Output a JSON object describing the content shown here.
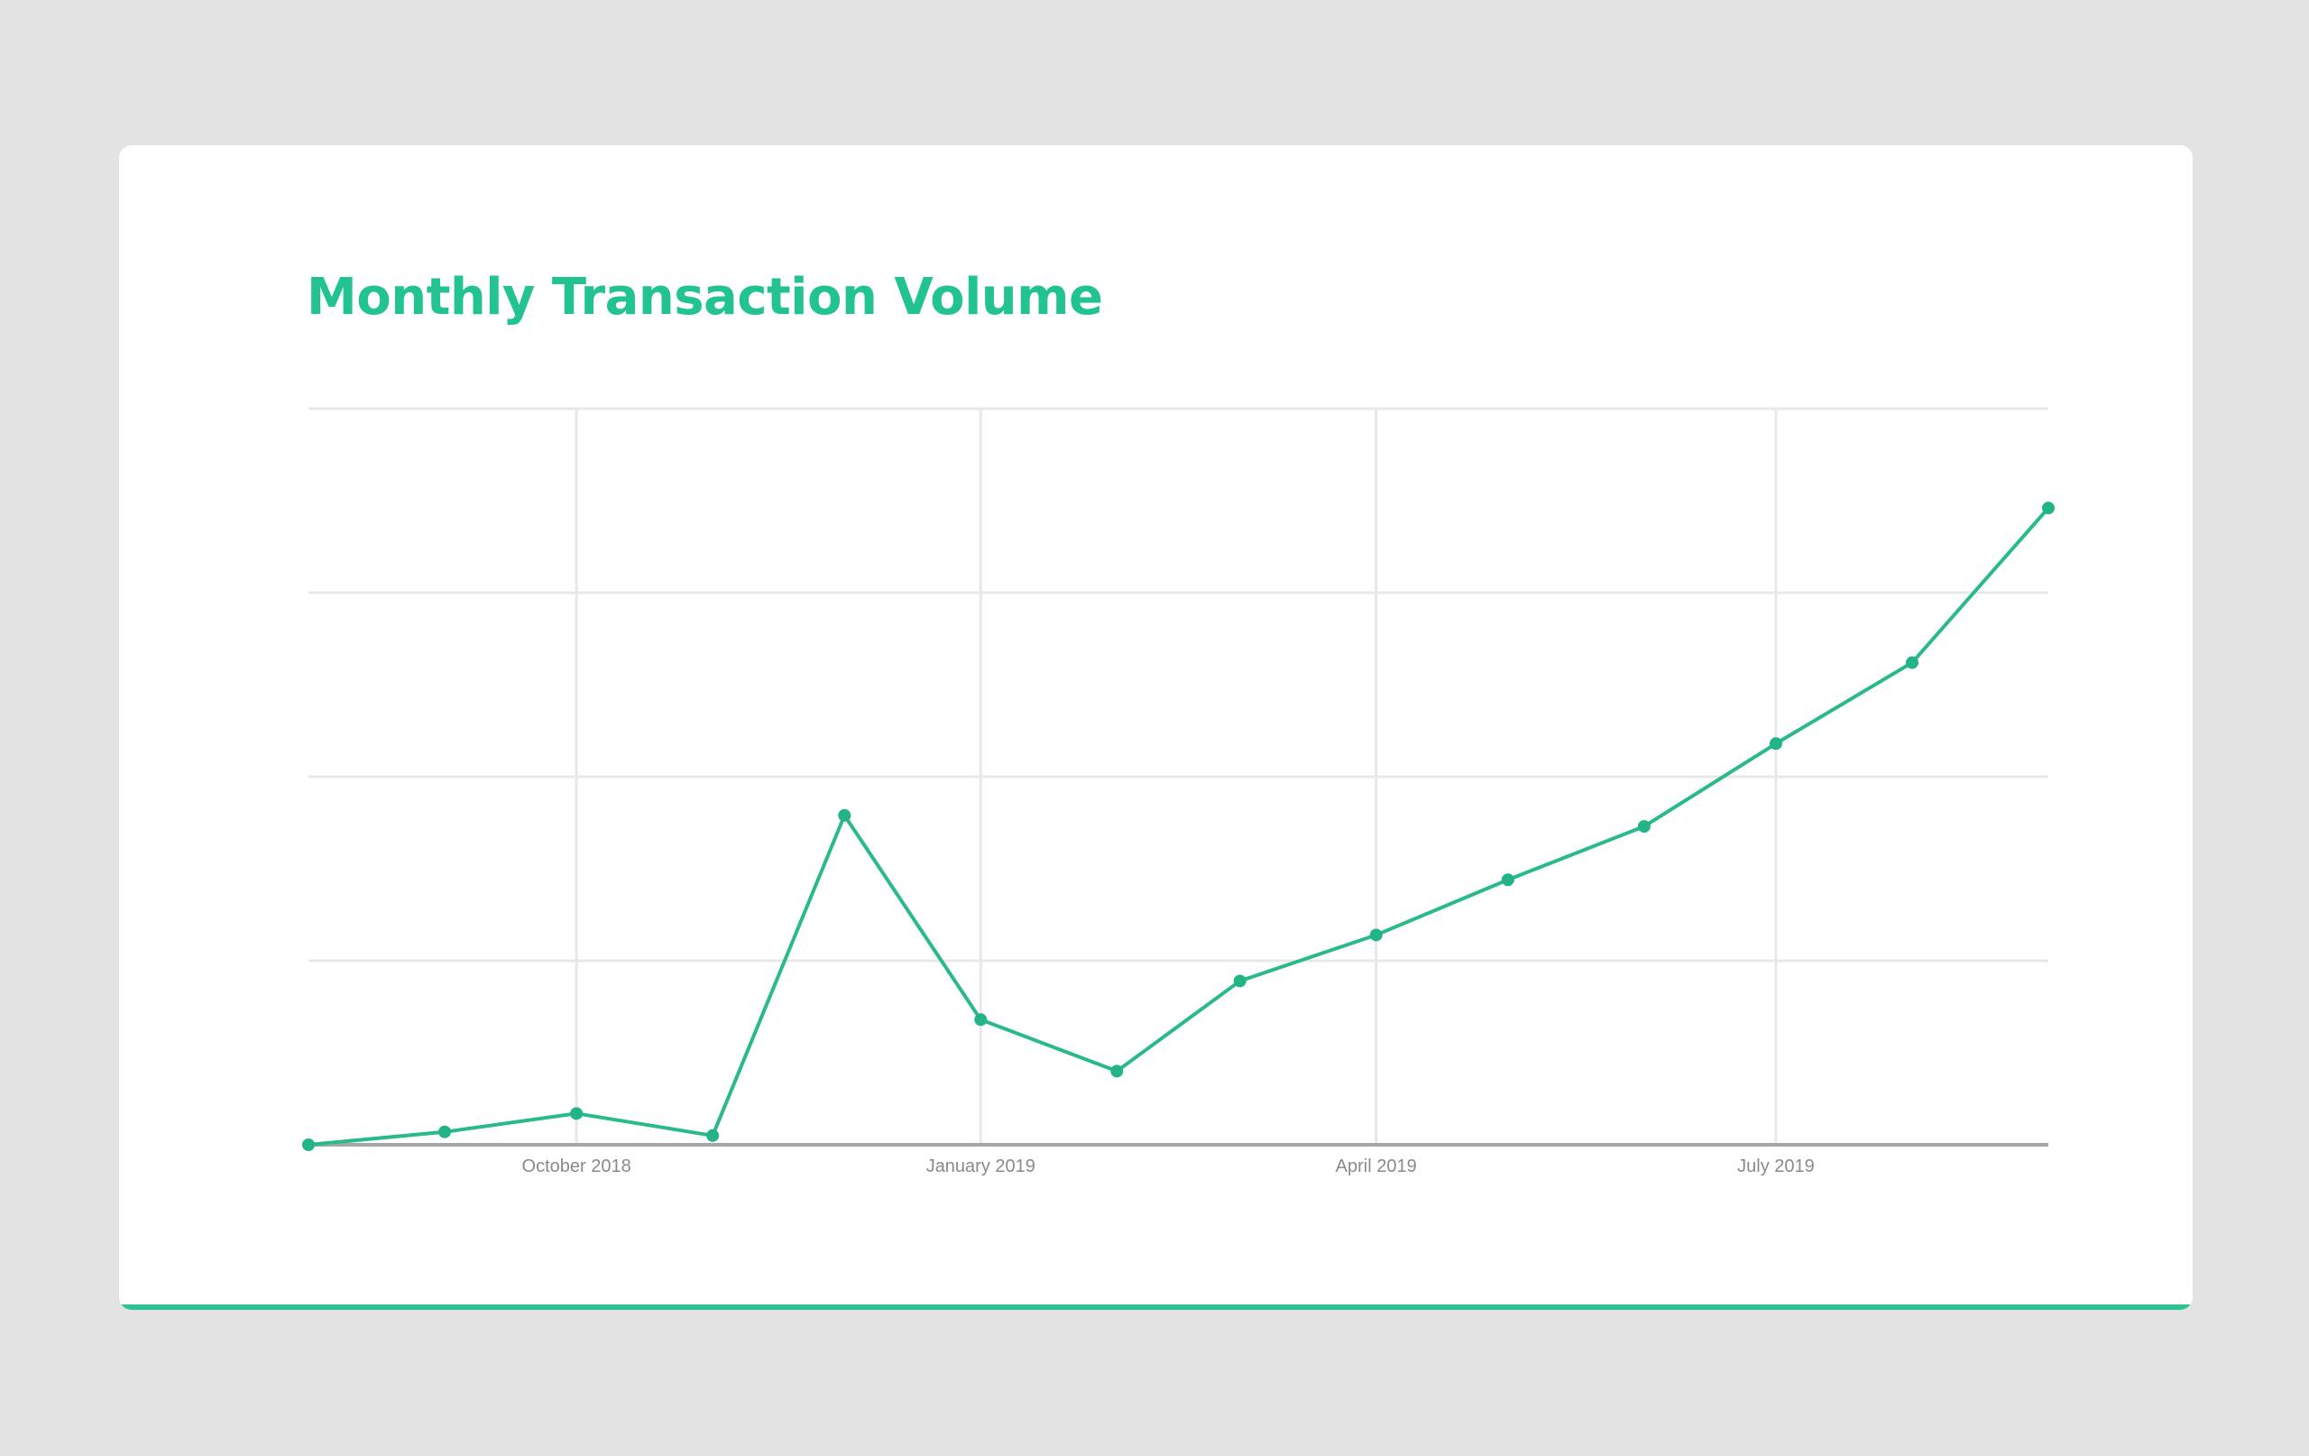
{
  "card": {
    "title": "Monthly Transaction Volume",
    "accent_color": "#2fc094",
    "title_color": "#22c391"
  },
  "chart_data": {
    "type": "line",
    "title": "Monthly Transaction Volume",
    "xlabel": "",
    "ylabel": "",
    "x_axis_type": "date",
    "x_tick_labels": [
      "October 2018",
      "January 2019",
      "April 2019",
      "July 2019"
    ],
    "x_tick_dates": [
      "2018-10-01",
      "2019-01-01",
      "2019-04-01",
      "2019-07-01"
    ],
    "xlim": [
      "2018-08-01",
      "2019-09-01"
    ],
    "ylim": [
      0,
      4
    ],
    "y_tick_labels_shown": false,
    "grid": true,
    "legend": "none",
    "series": [
      {
        "color": "#2ab98d",
        "x": [
          "2018-08-01",
          "2018-09-01",
          "2018-10-01",
          "2018-11-01",
          "2018-12-01",
          "2019-01-01",
          "2019-02-01",
          "2019-03-01",
          "2019-04-01",
          "2019-05-01",
          "2019-06-01",
          "2019-07-01",
          "2019-08-01",
          "2019-09-01"
        ],
        "values": [
          0.0,
          0.07,
          0.17,
          0.05,
          1.79,
          0.68,
          0.4,
          0.89,
          1.14,
          1.44,
          1.73,
          2.18,
          2.62,
          3.46
        ]
      }
    ]
  }
}
